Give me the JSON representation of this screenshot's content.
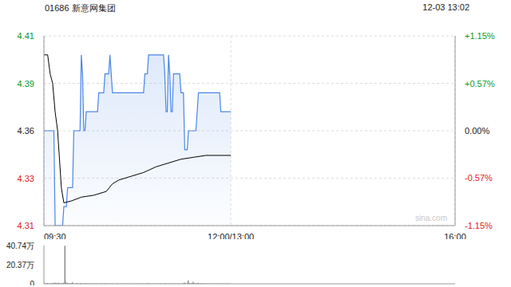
{
  "chart_data": {
    "type": "line",
    "title": "01686 新意网集团",
    "subtitle": "12-03 13:02",
    "watermark": "sina.com",
    "xlim": [
      0,
      330
    ],
    "xticks": [
      {
        "value": 0,
        "label": "09:30"
      },
      {
        "value": 150,
        "label": "12:00/13:00"
      },
      {
        "value": 330,
        "label": "16:00"
      }
    ],
    "ylim": [
      4.31,
      4.41
    ],
    "yticks": [
      4.31,
      {
        "value": 4.335,
        "label": "4.33"
      },
      4.36,
      {
        "value": 4.385,
        "label": "4.39"
      },
      4.41
    ],
    "y2lim": [
      -1.15,
      1.15
    ],
    "y2ticks": [
      {
        "value": -1.15,
        "label": "-1.15%"
      },
      {
        "value": -0.57,
        "label": "-0.57%"
      },
      {
        "value": 0,
        "label": "0.00%"
      },
      {
        "value": 0.57,
        "label": "+0.57%"
      },
      {
        "value": 1.15,
        "label": "+1.15%"
      }
    ],
    "grid": true,
    "series": [
      {
        "type": "area",
        "color": "#4a86e8",
        "x": [
          0,
          8,
          9,
          15,
          16,
          18,
          19,
          23,
          24,
          29,
          30,
          31,
          32,
          33,
          34,
          43,
          44,
          48,
          49,
          52,
          53,
          54,
          55,
          80,
          81,
          83,
          84,
          96,
          97,
          98,
          99,
          100,
          101,
          102,
          103,
          104,
          109,
          110,
          112,
          113,
          115,
          116,
          122,
          123,
          124,
          141,
          142,
          150
        ],
        "values": [
          4.36,
          4.36,
          4.31,
          4.31,
          4.32,
          4.32,
          4.33,
          4.33,
          4.36,
          4.36,
          4.4,
          4.39,
          4.36,
          4.36,
          4.37,
          4.37,
          4.38,
          4.38,
          4.39,
          4.39,
          4.4,
          4.39,
          4.38,
          4.38,
          4.39,
          4.39,
          4.4,
          4.4,
          4.39,
          4.37,
          4.37,
          4.4,
          4.39,
          4.37,
          4.37,
          4.39,
          4.39,
          4.38,
          4.38,
          4.35,
          4.35,
          4.36,
          4.36,
          4.37,
          4.38,
          4.38,
          4.37,
          4.37
        ]
      },
      {
        "type": "line",
        "color": "#000000",
        "x": [
          0,
          3,
          5,
          7,
          9,
          11,
          14,
          16,
          22,
          30,
          40,
          50,
          55,
          60,
          70,
          80,
          90,
          100,
          110,
          120,
          130,
          150
        ],
        "values": [
          4.4,
          4.4,
          4.39,
          4.385,
          4.37,
          4.36,
          4.33,
          4.322,
          4.323,
          4.325,
          4.326,
          4.328,
          4.332,
          4.334,
          4.336,
          4.338,
          4.341,
          4.343,
          4.345,
          4.346,
          4.347,
          4.347
        ]
      }
    ],
    "volume": {
      "type": "bar",
      "color": "#555555",
      "ylim": [
        0,
        40.74
      ],
      "yticks": [
        0,
        {
          "value": 20.37,
          "label": "20.37万"
        },
        {
          "value": 40.74,
          "label": "40.74万"
        }
      ],
      "x": [
        0,
        1,
        2,
        3,
        4,
        5,
        6,
        7,
        8,
        9,
        10,
        11,
        12,
        13,
        14,
        15,
        16,
        17,
        18,
        19,
        20,
        21,
        22,
        23,
        24,
        25,
        26,
        27,
        28,
        29,
        30,
        31,
        32,
        33,
        34,
        35,
        36,
        37,
        38,
        39,
        40,
        41,
        42,
        43,
        44,
        45,
        46,
        47,
        48,
        49,
        50,
        51,
        52,
        53,
        54,
        55,
        56,
        57,
        58,
        59,
        60,
        61,
        62,
        63,
        64,
        65,
        66,
        67,
        68,
        69,
        70,
        71,
        72,
        73,
        74,
        75,
        76,
        77,
        78,
        79,
        80,
        81,
        82,
        83,
        84,
        85,
        86,
        87,
        88,
        89,
        90,
        91,
        92,
        93,
        94,
        95,
        96,
        97,
        98,
        99,
        100,
        101,
        102,
        103,
        104,
        105,
        106,
        107,
        108,
        109,
        110,
        111,
        112,
        113,
        114,
        115,
        116,
        117,
        118,
        119,
        120,
        121,
        122,
        123,
        124,
        125,
        126,
        127,
        128,
        129,
        130,
        131,
        132,
        133,
        134,
        135,
        136,
        137,
        138,
        139,
        140,
        141,
        142,
        143,
        144,
        145,
        146,
        147,
        148,
        149,
        150
      ],
      "values": [
        2.1,
        0.6,
        0.4,
        0.8,
        0.3,
        0.5,
        0.4,
        0.6,
        0.9,
        1.2,
        0.8,
        0.6,
        1.0,
        0.7,
        0.5,
        0.9,
        1.1,
        40.5,
        1.5,
        0.8,
        0.6,
        0.4,
        0.7,
        1.4,
        0.5,
        0.3,
        0.4,
        0.6,
        0.3,
        0.5,
        0.8,
        0.4,
        0.3,
        0.5,
        0.6,
        0.3,
        0.4,
        0.2,
        0.5,
        0.3,
        0.4,
        0.3,
        0.6,
        0.2,
        0.3,
        0.5,
        0.4,
        0.2,
        0.3,
        0.4,
        0.6,
        0.3,
        0.2,
        0.5,
        0.3,
        0.4,
        0.2,
        0.3,
        0.2,
        0.4,
        0.3,
        0.2,
        0.4,
        0.3,
        0.2,
        0.5,
        0.3,
        0.2,
        0.3,
        0.2,
        0.4,
        0.2,
        0.3,
        0.2,
        0.5,
        0.3,
        0.2,
        0.4,
        0.3,
        0.2,
        0.5,
        0.3,
        0.2,
        0.4,
        0.6,
        0.3,
        0.2,
        0.3,
        0.4,
        0.2,
        0.3,
        0.5,
        0.2,
        0.3,
        0.4,
        0.2,
        0.3,
        0.6,
        0.4,
        0.3,
        0.5,
        0.3,
        0.2,
        0.4,
        0.3,
        0.5,
        0.2,
        0.3,
        0.4,
        0.3,
        0.2,
        0.4,
        0.5,
        1.2,
        0.6,
        0.4,
        3.6,
        0.8,
        0.5,
        0.9,
        2.2,
        0.6,
        0.4,
        0.8,
        1.0,
        0.5,
        0.4,
        0.6,
        0.3,
        0.5,
        0.4,
        0.3,
        0.5,
        0.3,
        0.4,
        0.2,
        0.3,
        0.5,
        0.3,
        0.4,
        0.3,
        0.5,
        0.2,
        0.4,
        0.3,
        0.2,
        0.4,
        0.3,
        0.5,
        0.3,
        0.2
      ]
    }
  }
}
